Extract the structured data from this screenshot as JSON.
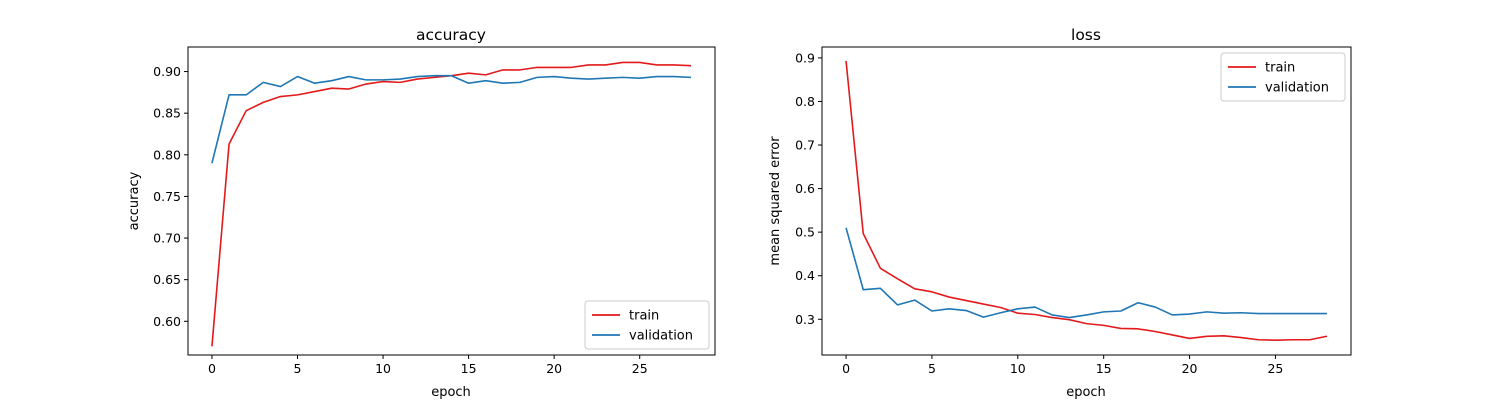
{
  "colors": {
    "train": "#e31a1c",
    "validation": "#1f77b4"
  },
  "chart_data": [
    {
      "type": "line",
      "title": "accuracy",
      "xlabel": "epoch",
      "ylabel": "accuracy",
      "xlim": [
        -1.4,
        29.4
      ],
      "ylim": [
        0.5595,
        0.9295
      ],
      "xticks": [
        0,
        5,
        10,
        15,
        20,
        25
      ],
      "yticks": [
        0.6,
        0.65,
        0.7,
        0.75,
        0.8,
        0.85,
        0.9
      ],
      "ytick_labels": [
        "0.60",
        "0.65",
        "0.70",
        "0.75",
        "0.80",
        "0.85",
        "0.90"
      ],
      "legend_loc": "lower-right",
      "x": [
        0,
        1,
        2,
        3,
        4,
        5,
        6,
        7,
        8,
        9,
        10,
        11,
        12,
        13,
        14,
        15,
        16,
        17,
        18,
        19,
        20,
        21,
        22,
        23,
        24,
        25,
        26,
        27,
        28
      ],
      "series": [
        {
          "name": "train",
          "color": "#e31a1c",
          "values": [
            0.57,
            0.813,
            0.853,
            0.863,
            0.87,
            0.872,
            0.876,
            0.88,
            0.879,
            0.885,
            0.888,
            0.887,
            0.891,
            0.893,
            0.895,
            0.898,
            0.896,
            0.902,
            0.902,
            0.905,
            0.905,
            0.905,
            0.908,
            0.908,
            0.911,
            0.911,
            0.908,
            0.908,
            0.907
          ]
        },
        {
          "name": "validation",
          "color": "#1f77b4",
          "values": [
            0.79,
            0.872,
            0.872,
            0.887,
            0.882,
            0.894,
            0.886,
            0.889,
            0.894,
            0.89,
            0.89,
            0.891,
            0.894,
            0.895,
            0.895,
            0.886,
            0.889,
            0.886,
            0.887,
            0.893,
            0.894,
            0.892,
            0.891,
            0.892,
            0.893,
            0.892,
            0.894,
            0.894,
            0.893
          ]
        }
      ]
    },
    {
      "type": "line",
      "title": "loss",
      "xlabel": "epoch",
      "ylabel": "mean squared error",
      "xlim": [
        -1.4,
        29.4
      ],
      "ylim": [
        0.218,
        0.925
      ],
      "xticks": [
        0,
        5,
        10,
        15,
        20,
        25
      ],
      "yticks": [
        0.3,
        0.4,
        0.5,
        0.6,
        0.7,
        0.8,
        0.9
      ],
      "ytick_labels": [
        "0.3",
        "0.4",
        "0.5",
        "0.6",
        "0.7",
        "0.8",
        "0.9"
      ],
      "legend_loc": "upper-right",
      "x": [
        0,
        1,
        2,
        3,
        4,
        5,
        6,
        7,
        8,
        9,
        10,
        11,
        12,
        13,
        14,
        15,
        16,
        17,
        18,
        19,
        20,
        21,
        22,
        23,
        24,
        25,
        26,
        27,
        28
      ],
      "series": [
        {
          "name": "train",
          "color": "#e31a1c",
          "values": [
            0.893,
            0.497,
            0.417,
            0.393,
            0.37,
            0.363,
            0.351,
            0.343,
            0.335,
            0.327,
            0.314,
            0.311,
            0.304,
            0.299,
            0.29,
            0.286,
            0.279,
            0.278,
            0.272,
            0.264,
            0.256,
            0.261,
            0.262,
            0.258,
            0.253,
            0.252,
            0.253,
            0.253,
            0.261
          ]
        },
        {
          "name": "validation",
          "color": "#1f77b4",
          "values": [
            0.51,
            0.368,
            0.371,
            0.333,
            0.344,
            0.319,
            0.324,
            0.32,
            0.305,
            0.315,
            0.324,
            0.328,
            0.31,
            0.304,
            0.31,
            0.317,
            0.319,
            0.338,
            0.328,
            0.31,
            0.312,
            0.317,
            0.314,
            0.315,
            0.313,
            0.313,
            0.313,
            0.313,
            0.313
          ]
        }
      ]
    }
  ]
}
